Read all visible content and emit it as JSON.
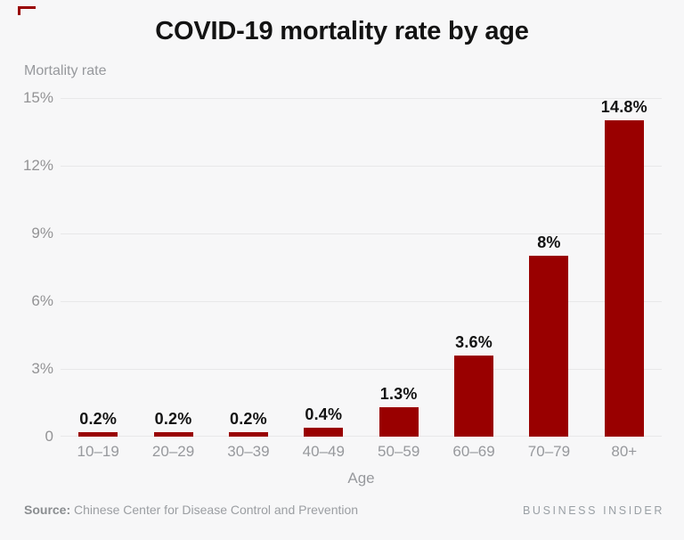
{
  "accent_color": "#990000",
  "title": "COVID-19 mortality rate by age",
  "chart_data": {
    "type": "bar",
    "title": "COVID-19 mortality rate by age",
    "ylabel": "Mortality rate",
    "xlabel": "Age",
    "categories": [
      "10–19",
      "20–29",
      "30–39",
      "40–49",
      "50–59",
      "60–69",
      "70–79",
      "80+"
    ],
    "values": [
      0.2,
      0.2,
      0.2,
      0.4,
      1.3,
      3.6,
      8,
      14.8
    ],
    "value_labels": [
      "0.2%",
      "0.2%",
      "0.2%",
      "0.4%",
      "1.3%",
      "3.6%",
      "8%",
      "14.8%"
    ],
    "ytick_labels": [
      "15%",
      "12%",
      "9%",
      "6%",
      "3%",
      "0"
    ],
    "ytick_values": [
      15,
      12,
      9,
      6,
      3,
      0
    ],
    "ylim": [
      0,
      15
    ],
    "grid": true,
    "legend": false,
    "bar_color": "#990000"
  },
  "footer": {
    "source_label": "Source:",
    "source_text": "Chinese Center for Disease Control and Prevention",
    "branding": "BUSINESS INSIDER"
  }
}
